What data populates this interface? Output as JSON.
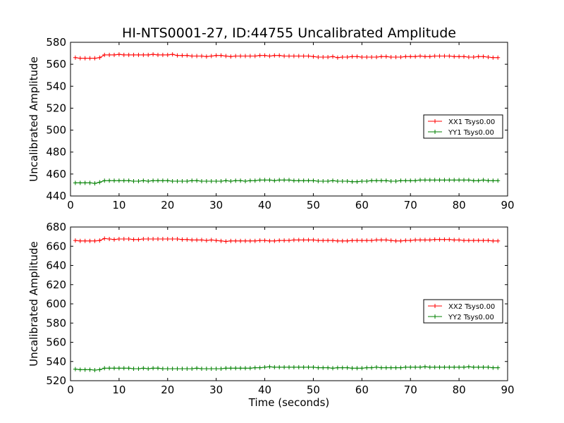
{
  "title": "HI-NTS0001-27, ID:44755 Uncalibrated Amplitude",
  "colors": {
    "XX": "#ff0000",
    "YY": "#008000"
  },
  "chart_data": [
    {
      "type": "line",
      "title": "HI-NTS0001-27, ID:44755 Uncalibrated Amplitude",
      "xlabel": "",
      "ylabel": "Uncalibrated Amplitude",
      "xlim": [
        0,
        90
      ],
      "ylim": [
        440,
        580
      ],
      "xticks": [
        "0",
        "10",
        "20",
        "30",
        "40",
        "50",
        "60",
        "70",
        "80",
        "90"
      ],
      "yticks": [
        "440",
        "460",
        "480",
        "500",
        "520",
        "540",
        "560",
        "580"
      ],
      "legend_position": "center-right",
      "grid": false,
      "marker": "+",
      "series": [
        {
          "name": "XX1 Tsys0.00",
          "color": "#ff0000",
          "x": [
            1,
            2,
            3,
            4,
            5,
            6,
            7,
            8,
            9,
            10,
            11,
            12,
            13,
            14,
            15,
            16,
            17,
            18,
            19,
            20,
            21,
            22,
            23,
            24,
            25,
            26,
            27,
            28,
            29,
            30,
            31,
            32,
            33,
            34,
            35,
            36,
            37,
            38,
            39,
            40,
            41,
            42,
            43,
            44,
            45,
            46,
            47,
            48,
            49,
            50,
            51,
            52,
            53,
            54,
            55,
            56,
            57,
            58,
            59,
            60,
            61,
            62,
            63,
            64,
            65,
            66,
            67,
            68,
            69,
            70,
            71,
            72,
            73,
            74,
            75,
            76,
            77,
            78,
            79,
            80,
            81,
            82,
            83,
            84,
            85,
            86,
            87,
            88
          ],
          "y": [
            566,
            565.5,
            565.5,
            565.5,
            565.5,
            566,
            568.5,
            568.5,
            568.5,
            569,
            568.5,
            568.5,
            568.5,
            568.5,
            568.5,
            568.5,
            569,
            568.5,
            568.5,
            568.5,
            569,
            568,
            568,
            568,
            567.5,
            567.5,
            567.5,
            567,
            567.5,
            568,
            568,
            567.5,
            567,
            567.5,
            567.5,
            567.5,
            567.5,
            567.5,
            568,
            568,
            567.5,
            568,
            568,
            567.5,
            567.5,
            567.5,
            567.5,
            567.5,
            567.5,
            567,
            566.5,
            566.5,
            566.5,
            567,
            566,
            566.5,
            566.5,
            567,
            567,
            566.5,
            566.5,
            566.5,
            566.5,
            567,
            567,
            566.5,
            566.5,
            566.5,
            567,
            567,
            567,
            567.5,
            567,
            567,
            567.5,
            567.5,
            567.5,
            567.5,
            567,
            567,
            567,
            566.5,
            566.5,
            567,
            567,
            566.5,
            566,
            566
          ]
        },
        {
          "name": "YY1 Tsys0.00",
          "color": "#008000",
          "x": [
            1,
            2,
            3,
            4,
            5,
            6,
            7,
            8,
            9,
            10,
            11,
            12,
            13,
            14,
            15,
            16,
            17,
            18,
            19,
            20,
            21,
            22,
            23,
            24,
            25,
            26,
            27,
            28,
            29,
            30,
            31,
            32,
            33,
            34,
            35,
            36,
            37,
            38,
            39,
            40,
            41,
            42,
            43,
            44,
            45,
            46,
            47,
            48,
            49,
            50,
            51,
            52,
            53,
            54,
            55,
            56,
            57,
            58,
            59,
            60,
            61,
            62,
            63,
            64,
            65,
            66,
            67,
            68,
            69,
            70,
            71,
            72,
            73,
            74,
            75,
            76,
            77,
            78,
            79,
            80,
            81,
            82,
            83,
            84,
            85,
            86,
            87,
            88
          ],
          "y": [
            452,
            452,
            452,
            452,
            451.5,
            452.5,
            454,
            454,
            454,
            454,
            454,
            454,
            453.5,
            453.5,
            454,
            453.5,
            454,
            454,
            454,
            454,
            453.5,
            453.5,
            453.5,
            453.5,
            454,
            454,
            453.5,
            453.5,
            453.5,
            453.5,
            453.5,
            454,
            453.5,
            454,
            454,
            453.5,
            454,
            454,
            454.5,
            454.5,
            454.5,
            454,
            454.5,
            454.5,
            454.5,
            454,
            454,
            454,
            454,
            454,
            453.5,
            453.5,
            453.5,
            454,
            453.5,
            453.5,
            453.5,
            453,
            453,
            453.5,
            453.5,
            454,
            454,
            454,
            454,
            453.5,
            453.5,
            454,
            454,
            454,
            454,
            454.5,
            454.5,
            454.5,
            454.5,
            454.5,
            454.5,
            454.5,
            454.5,
            454.5,
            454.5,
            454.5,
            454,
            454,
            454.5,
            454,
            454,
            454
          ]
        }
      ]
    },
    {
      "type": "line",
      "title": "",
      "xlabel": "Time (seconds)",
      "ylabel": "Uncalibrated Amplitude",
      "xlim": [
        0,
        90
      ],
      "ylim": [
        520,
        680
      ],
      "xticks": [
        "0",
        "10",
        "20",
        "30",
        "40",
        "50",
        "60",
        "70",
        "80",
        "90"
      ],
      "yticks": [
        "520",
        "540",
        "560",
        "580",
        "600",
        "620",
        "640",
        "660",
        "680"
      ],
      "legend_position": "center-right",
      "grid": false,
      "marker": "+",
      "series": [
        {
          "name": "XX2 Tsys0.00",
          "color": "#ff0000",
          "x": [
            1,
            2,
            3,
            4,
            5,
            6,
            7,
            8,
            9,
            10,
            11,
            12,
            13,
            14,
            15,
            16,
            17,
            18,
            19,
            20,
            21,
            22,
            23,
            24,
            25,
            26,
            27,
            28,
            29,
            30,
            31,
            32,
            33,
            34,
            35,
            36,
            37,
            38,
            39,
            40,
            41,
            42,
            43,
            44,
            45,
            46,
            47,
            48,
            49,
            50,
            51,
            52,
            53,
            54,
            55,
            56,
            57,
            58,
            59,
            60,
            61,
            62,
            63,
            64,
            65,
            66,
            67,
            68,
            69,
            70,
            71,
            72,
            73,
            74,
            75,
            76,
            77,
            78,
            79,
            80,
            81,
            82,
            83,
            84,
            85,
            86,
            87,
            88
          ],
          "y": [
            666,
            665.5,
            665.5,
            665.5,
            665.5,
            666,
            668,
            667.5,
            667,
            667.5,
            667.5,
            667.5,
            667,
            667,
            667.5,
            667.5,
            667.5,
            667.5,
            667.5,
            667.5,
            667.5,
            667.5,
            667,
            667,
            666.5,
            666.5,
            666.5,
            666,
            666.5,
            666,
            665.5,
            665,
            665.5,
            665.5,
            665.5,
            665.5,
            665.5,
            665.5,
            666,
            666,
            665.5,
            665.5,
            666,
            666,
            666,
            666.5,
            666.5,
            666.5,
            666.5,
            666.5,
            666,
            666,
            666,
            666,
            665.5,
            665.5,
            665.5,
            666,
            666,
            666,
            666,
            666,
            666.5,
            666.5,
            666.5,
            666,
            665.5,
            665.5,
            666,
            666,
            666.5,
            666.5,
            666.5,
            666.5,
            667,
            667,
            667,
            667,
            666.5,
            666.5,
            666,
            666,
            666,
            666,
            666,
            666,
            665.5,
            665.5
          ]
        },
        {
          "name": "YY2 Tsys0.00",
          "color": "#008000",
          "x": [
            1,
            2,
            3,
            4,
            5,
            6,
            7,
            8,
            9,
            10,
            11,
            12,
            13,
            14,
            15,
            16,
            17,
            18,
            19,
            20,
            21,
            22,
            23,
            24,
            25,
            26,
            27,
            28,
            29,
            30,
            31,
            32,
            33,
            34,
            35,
            36,
            37,
            38,
            39,
            40,
            41,
            42,
            43,
            44,
            45,
            46,
            47,
            48,
            49,
            50,
            51,
            52,
            53,
            54,
            55,
            56,
            57,
            58,
            59,
            60,
            61,
            62,
            63,
            64,
            65,
            66,
            67,
            68,
            69,
            70,
            71,
            72,
            73,
            74,
            75,
            76,
            77,
            78,
            79,
            80,
            81,
            82,
            83,
            84,
            85,
            86,
            87,
            88
          ],
          "y": [
            532,
            531.5,
            531.5,
            531.5,
            531,
            531.5,
            533,
            533,
            533,
            533,
            533,
            533,
            532.5,
            532.5,
            533,
            532.5,
            533,
            533,
            532.5,
            532.5,
            532.5,
            532.5,
            532.5,
            532.5,
            532.5,
            533,
            532.5,
            532.5,
            532.5,
            532.5,
            532.5,
            533,
            533,
            533,
            533,
            533,
            533,
            533.5,
            533.5,
            534,
            534.5,
            534,
            534,
            534,
            534,
            534,
            534,
            534,
            534,
            534,
            533.5,
            533.5,
            533.5,
            533,
            533.5,
            533.5,
            533.5,
            533,
            533,
            533,
            533.5,
            533.5,
            534,
            533.5,
            533.5,
            533.5,
            533.5,
            533.5,
            534,
            534,
            534,
            534,
            534.5,
            534,
            534,
            534,
            534,
            534,
            534,
            534,
            534,
            534.5,
            534,
            534,
            534,
            534,
            533.5,
            533.5
          ]
        }
      ]
    }
  ]
}
